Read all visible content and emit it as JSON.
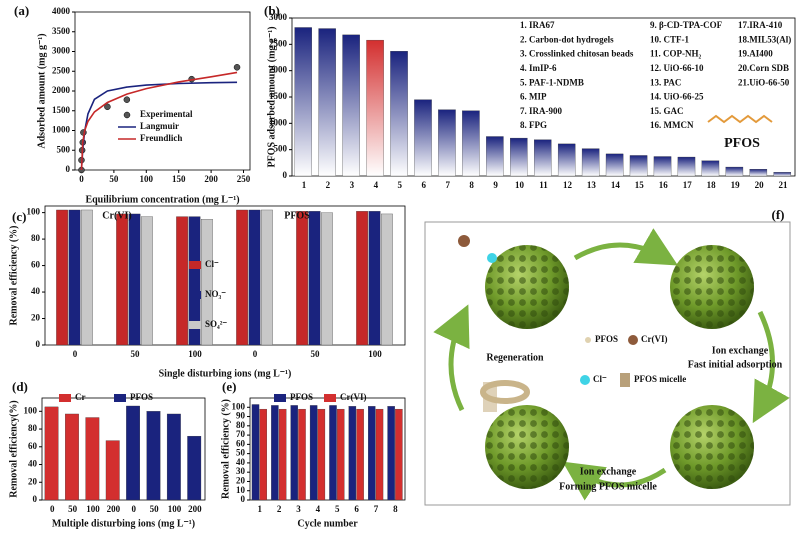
{
  "chart_data": [
    {
      "type": "scatter",
      "panel": "(a)",
      "xlabel": "Equilibrium concentration (mg L⁻¹)",
      "ylabel": "Adsorbed amount (mg g⁻¹)",
      "xlim": [
        -10,
        260
      ],
      "xticks": [
        0,
        50,
        100,
        150,
        200,
        250
      ],
      "ylim": [
        0,
        4000
      ],
      "yticks": [
        0,
        500,
        1000,
        1500,
        2000,
        2500,
        3000,
        3500,
        4000
      ],
      "series": [
        {
          "name": "Experimental",
          "kind": "points",
          "color": "#555555",
          "x": [
            0,
            0,
            1,
            2,
            3,
            40,
            70,
            170,
            240
          ],
          "values": [
            0,
            250,
            500,
            700,
            950,
            1600,
            1780,
            2300,
            2600
          ]
        },
        {
          "name": "Langmuir",
          "kind": "line",
          "color": "#1a237e",
          "x": [
            0,
            2,
            5,
            10,
            20,
            40,
            70,
            100,
            150,
            200,
            240
          ],
          "values": [
            0,
            530,
            990,
            1420,
            1790,
            2000,
            2100,
            2150,
            2190,
            2210,
            2220
          ]
        },
        {
          "name": "Freundlich",
          "kind": "line",
          "color": "#c62828",
          "x": [
            0,
            2,
            5,
            10,
            20,
            40,
            70,
            100,
            150,
            200,
            240
          ],
          "values": [
            0,
            700,
            1000,
            1230,
            1470,
            1710,
            1920,
            2060,
            2230,
            2360,
            2470
          ]
        }
      ]
    },
    {
      "type": "bar",
      "panel": "(b)",
      "ylabel": "PFOS adsorbed amount (mg g⁻¹)",
      "ylim": [
        0,
        3000
      ],
      "yticks": [
        0,
        500,
        1000,
        1500,
        2000,
        2500,
        3000
      ],
      "categories": [
        "1",
        "2",
        "3",
        "4",
        "5",
        "6",
        "7",
        "8",
        "9",
        "10",
        "11",
        "12",
        "13",
        "14",
        "15",
        "16",
        "17",
        "18",
        "19",
        "20",
        "21"
      ],
      "series": [
        {
          "colors": [
            "#1a237e",
            "#1a237e",
            "#1a237e",
            "#d32f2f",
            "#1a237e",
            "#1a237e",
            "#1a237e",
            "#1a237e",
            "#1a237e",
            "#1a237e",
            "#1a237e",
            "#1a237e",
            "#1a237e",
            "#1a237e",
            "#1a237e",
            "#1a237e",
            "#1a237e",
            "#1a237e",
            "#1a237e",
            "#1a237e",
            "#1a237e"
          ],
          "values": [
            2820,
            2800,
            2680,
            2580,
            2370,
            1450,
            1260,
            1240,
            750,
            720,
            690,
            610,
            520,
            420,
            390,
            370,
            360,
            290,
            170,
            130,
            70
          ]
        }
      ],
      "notes": [
        "1. IRA67",
        "2. Carbon-dot hydrogels",
        "3. Crosslinked chitosan beads",
        "4. ImIP-6",
        "5.  PAF-1-NDMB",
        "6. MIP",
        "7. IRA-900",
        "8. FPG",
        "9. β-CD-TPA-COF",
        "10. CTF-1",
        "11. COP-NH₂",
        "12. UiO-66-10",
        "13.  PAC",
        "14. UiO-66-25",
        "15.  GAC",
        "16.  MMCN",
        "17.IRA-410",
        "18.MIL53(Al)",
        "19.AI400",
        "20.Corn SDB",
        "21.UiO-66-50"
      ],
      "annotation": "PFOS"
    },
    {
      "type": "bar",
      "panel": "(c)",
      "xlabel": "Single disturbing ions (mg L⁻¹)",
      "ylabel": "Removal efficiency (%)",
      "ylim": [
        0,
        105
      ],
      "yticks": [
        0,
        20,
        40,
        60,
        80,
        100
      ],
      "legend": "center",
      "categories": [
        "0",
        "50",
        "100",
        "0",
        "50",
        "100"
      ],
      "group_labels": [
        "Cr(VI)",
        "PFOS"
      ],
      "series": [
        {
          "name": "Cl⁻",
          "color": "#c62828",
          "values": [
            102,
            99,
            97,
            102,
            101,
            101
          ]
        },
        {
          "name": "NO₃⁻",
          "color": "#1a237e",
          "values": [
            102,
            99,
            97,
            102,
            101,
            101
          ]
        },
        {
          "name": "SO₄²⁻",
          "color": "#c8c8c8",
          "values": [
            102,
            97,
            95,
            102,
            100,
            99
          ]
        }
      ]
    },
    {
      "type": "bar",
      "panel": "(d)",
      "xlabel": "Multiple disturbing ions (mg L⁻¹)",
      "ylabel": "Removal efficiency(%)",
      "ylim": [
        0,
        115
      ],
      "yticks": [
        0,
        20,
        40,
        60,
        80,
        100
      ],
      "legend": "top",
      "categories": [
        "0",
        "50",
        "100",
        "200",
        "0",
        "50",
        "100",
        "200"
      ],
      "series": [
        {
          "name": "Cr",
          "color": "#d32f2f",
          "values": [
            105,
            97,
            93,
            67,
            null,
            null,
            null,
            null
          ]
        },
        {
          "name": "PFOS",
          "color": "#1a237e",
          "values": [
            null,
            null,
            null,
            null,
            106,
            100,
            97,
            72
          ]
        }
      ]
    },
    {
      "type": "bar",
      "panel": "(e)",
      "xlabel": "Cycle number",
      "ylabel": "Removal efficiency (%)",
      "ylim": [
        0,
        110
      ],
      "yticks": [
        0,
        10,
        20,
        30,
        40,
        50,
        60,
        70,
        80,
        90,
        100
      ],
      "legend": "top",
      "categories": [
        "1",
        "2",
        "3",
        "4",
        "5",
        "6",
        "7",
        "8"
      ],
      "series": [
        {
          "name": "PFOS",
          "color": "#1a237e",
          "values": [
            103,
            102,
            102,
            102,
            102,
            101,
            101,
            101
          ]
        },
        {
          "name": "Cr(VI)",
          "color": "#d32f2f",
          "values": [
            98,
            98,
            98,
            98,
            98,
            98,
            98,
            98
          ]
        }
      ]
    }
  ],
  "diagram": {
    "panel": "(f)",
    "regeneration": "Regeneration",
    "step1": "Ion exchange",
    "step1_note": "Fast initial adsorption",
    "step2": "Ion exchange",
    "step2_note": "Forming PFOS micelle",
    "legend": [
      "PFOS",
      "Cr(VI)",
      "Cl⁻",
      "PFOS micelle"
    ]
  }
}
